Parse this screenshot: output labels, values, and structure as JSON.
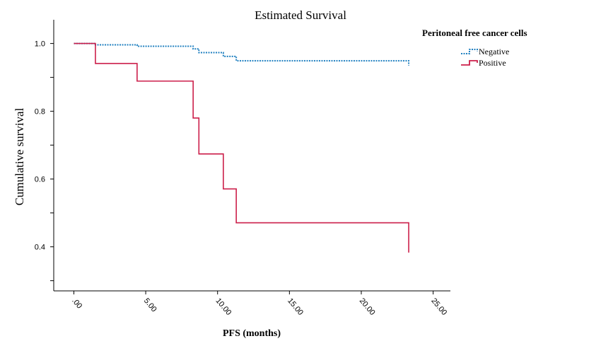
{
  "chart_data": {
    "type": "line",
    "title": "Estimated Survival",
    "xlabel": "PFS (months)",
    "ylabel": "Cumulative survival",
    "xlim": [
      -1.4,
      26.2
    ],
    "ylim": [
      0.27,
      1.07
    ],
    "x_ticks": [
      {
        "value": 0,
        "label": ".00"
      },
      {
        "value": 5,
        "label": "5.00"
      },
      {
        "value": 10,
        "label": "10.00"
      },
      {
        "value": 15,
        "label": "15.00"
      },
      {
        "value": 20,
        "label": "20.00"
      },
      {
        "value": 25,
        "label": "25.00"
      }
    ],
    "y_ticks": [
      {
        "value": 0.4,
        "label": "0.4"
      },
      {
        "value": 0.6,
        "label": "0.6"
      },
      {
        "value": 0.8,
        "label": "0.8"
      },
      {
        "value": 1.0,
        "label": "1.0"
      }
    ],
    "y_minor_ticks": [
      0.3,
      0.5,
      0.7,
      0.9
    ],
    "legend": {
      "title": "Peritoneal free cancer cells",
      "position": "top-right"
    },
    "series": [
      {
        "name": "Negative",
        "color": "#2080c0",
        "style": "dotted",
        "x": [
          0,
          1.5,
          4.4,
          8.3,
          8.7,
          10.4,
          11.3,
          23.3
        ],
        "y": [
          1.0,
          0.996,
          0.992,
          0.984,
          0.973,
          0.962,
          0.949,
          0.949
        ],
        "censor_end": 0.935
      },
      {
        "name": "Positive",
        "color": "#cc1f4a",
        "style": "solid",
        "x": [
          0,
          1.5,
          4.4,
          8.3,
          8.7,
          10.4,
          11.3,
          23.3
        ],
        "y": [
          1.0,
          0.941,
          0.889,
          0.78,
          0.674,
          0.571,
          0.471,
          0.471
        ],
        "censor_end": 0.383
      }
    ]
  }
}
